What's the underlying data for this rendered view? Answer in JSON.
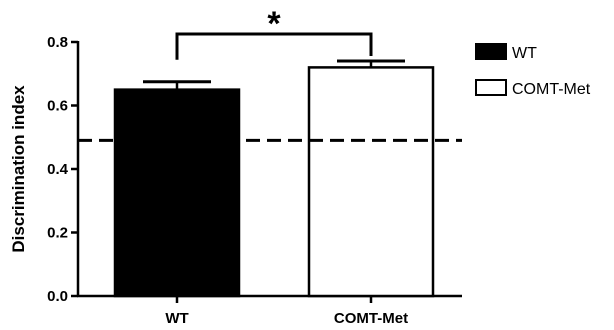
{
  "chart_data": {
    "type": "bar",
    "title": "",
    "xlabel": "",
    "ylabel": "Discrimination index",
    "ylim": [
      0,
      0.8
    ],
    "yticks": [
      "0.0",
      "0.2",
      "0.4",
      "0.6",
      "0.8"
    ],
    "ytick_values": [
      0,
      0.2,
      0.4,
      0.6,
      0.8
    ],
    "categories": [
      "WT",
      "COMT-Met"
    ],
    "values": [
      0.65,
      0.72
    ],
    "errors": [
      0.025,
      0.02
    ],
    "bar_fills": [
      "#000000",
      "#ffffff"
    ],
    "reference_line": 0.49,
    "significance": {
      "label": "*",
      "between": [
        "WT",
        "COMT-Met"
      ]
    },
    "legend": [
      {
        "label": "WT",
        "fill": "#000000"
      },
      {
        "label": "COMT-Met",
        "fill": "#ffffff"
      }
    ],
    "legend_position": "top-right",
    "grid": false
  }
}
